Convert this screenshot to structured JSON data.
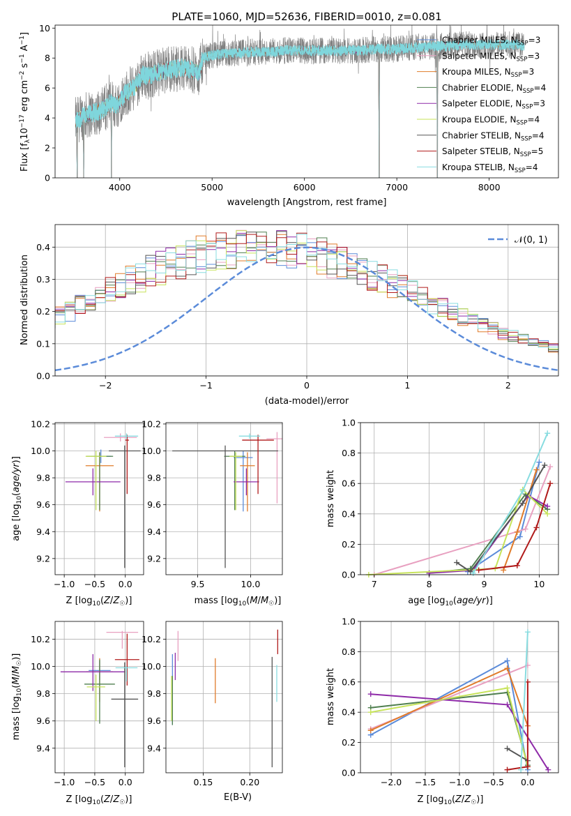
{
  "figure_title": "PLATE=1060, MJD=52636, FIBERID=0010, z=0.081",
  "models": [
    {
      "name": "Chabrier MILES",
      "lab_base": "Chabrier MILES, N",
      "lab_sub": "SSP",
      "lab_end": "=3",
      "color": "#5b8bd9"
    },
    {
      "name": "Salpeter MILES",
      "lab_base": "Salpeter MILES, N",
      "lab_sub": "SSP",
      "lab_end": "=3",
      "color": "#e8a0c0"
    },
    {
      "name": "Kroupa MILES",
      "lab_base": "Kroupa MILES, N",
      "lab_sub": "SSP",
      "lab_end": "=3",
      "color": "#e07b2a"
    },
    {
      "name": "Chabrier ELODIE",
      "lab_base": "Chabrier ELODIE, N",
      "lab_sub": "SSP",
      "lab_end": "=4",
      "color": "#4f7f4f"
    },
    {
      "name": "Salpeter ELODIE",
      "lab_base": "Salpeter ELODIE, N",
      "lab_sub": "SSP",
      "lab_end": "=3",
      "color": "#8e2aa8"
    },
    {
      "name": "Kroupa ELODIE",
      "lab_base": "Kroupa ELODIE, N",
      "lab_sub": "SSP",
      "lab_end": "=4",
      "color": "#c7e35a"
    },
    {
      "name": "Chabrier STELIB",
      "lab_base": "Chabrier STELIB, N",
      "lab_sub": "SSP",
      "lab_end": "=4",
      "color": "#555555"
    },
    {
      "name": "Salpeter STELIB",
      "lab_base": "Salpeter STELIB, N",
      "lab_sub": "SSP",
      "lab_end": "=5",
      "color": "#b01a1a"
    },
    {
      "name": "Kroupa STELIB",
      "lab_base": "Kroupa STELIB, N",
      "lab_sub": "SSP",
      "lab_end": "=4",
      "color": "#88dce0"
    }
  ],
  "chart_data": [
    {
      "type": "line",
      "title": "PLATE=1060, MJD=52636, FIBERID=0010, z=0.081",
      "xlabel": "wavelength [Angstrom, rest frame]",
      "ylabel": "Flux [f_λ 10^-17 erg cm^-2 s^-1 A^-1]",
      "xlim": [
        3300,
        8750
      ],
      "ylim": [
        0,
        10.2
      ],
      "xticks": [
        4000,
        5000,
        6000,
        7000,
        8000
      ],
      "yticks": [
        0,
        2,
        4,
        6,
        8,
        10
      ],
      "data_color": "#808080",
      "model_color": "#7fd6dc",
      "continuum_x": [
        3520,
        3600,
        3700,
        3800,
        3900,
        3960,
        4050,
        4150,
        4250,
        4300,
        4400,
        4500,
        4600,
        4700,
        4860,
        4900,
        5000,
        5200,
        5400,
        5600,
        5800,
        6000,
        6200,
        6400,
        6600,
        6800,
        7000,
        7200,
        7300,
        7400,
        7500,
        7600,
        7700,
        7800,
        7900,
        8000,
        8100,
        8200,
        8300,
        8380
      ],
      "continuum_y": [
        3.8,
        4.1,
        4.3,
        4.5,
        5.0,
        4.8,
        5.6,
        6.0,
        6.9,
        6.8,
        7.0,
        7.2,
        7.3,
        7.4,
        7.0,
        8.0,
        8.2,
        8.3,
        8.4,
        8.4,
        8.5,
        8.5,
        8.5,
        8.5,
        8.5,
        8.6,
        8.6,
        8.7,
        8.7,
        8.8,
        8.8,
        8.8,
        8.9,
        8.9,
        8.9,
        8.9,
        8.9,
        8.9,
        8.9,
        8.8
      ],
      "gaps": [
        [
          3540,
          0
        ],
        [
          3610,
          0
        ],
        [
          3910,
          0
        ],
        [
          6810,
          0
        ],
        [
          7440,
          0
        ]
      ],
      "legend": "upper right"
    },
    {
      "type": "bar",
      "xlabel": "(data-model)/error",
      "ylabel": "Normed distribution",
      "xlim": [
        -2.5,
        2.5
      ],
      "ylim": [
        0,
        0.47
      ],
      "xticks": [
        -2,
        -1,
        0,
        1,
        2
      ],
      "yticks": [
        0.0,
        0.1,
        0.2,
        0.3,
        0.4
      ],
      "bin_width": 0.1,
      "histogram": [
        0.03,
        0.033,
        0.037,
        0.043,
        0.05,
        0.058,
        0.066,
        0.076,
        0.087,
        0.1,
        0.112,
        0.126,
        0.14,
        0.155,
        0.17,
        0.186,
        0.202,
        0.218,
        0.233,
        0.25,
        0.265,
        0.28,
        0.296,
        0.31,
        0.323,
        0.335,
        0.347,
        0.358,
        0.368,
        0.376,
        0.384,
        0.389,
        0.393,
        0.396,
        0.398,
        0.399,
        0.398,
        0.395,
        0.391,
        0.386,
        0.378,
        0.37,
        0.361,
        0.35,
        0.339,
        0.326,
        0.313,
        0.299,
        0.285,
        0.271,
        0.256,
        0.242,
        0.228,
        0.213,
        0.199,
        0.185,
        0.171,
        0.158,
        0.146,
        0.134,
        0.123,
        0.112,
        0.103,
        0.095,
        0.087,
        0.08,
        0.074,
        0.068,
        0.062,
        0.058,
        0.054,
        0.05,
        0.046,
        0.043,
        0.04,
        0.037,
        0.035,
        0.033,
        0.031,
        0.029
      ],
      "reference_curve": {
        "name": "N(0,1)",
        "color": "#5b8bd9"
      },
      "legend": "upper right"
    },
    {
      "type": "scatter",
      "xlabel": "Z [log10(Z/Zsun)]",
      "ylabel": "age [log10(age/yr)]",
      "xlim": [
        -1.15,
        0.3
      ],
      "ylim": [
        9.08,
        10.21
      ],
      "xticks": [
        -1.0,
        -0.5,
        0.0
      ],
      "yticks": [
        9.2,
        9.4,
        9.6,
        9.8,
        10.0,
        10.2
      ],
      "points": [
        {
          "x": -0.4,
          "y": 9.96,
          "xerr": 0.17,
          "yerr": 0.05,
          "yerr_low": 0.05
        },
        {
          "x": -0.08,
          "y": 10.1,
          "xerr": 0.27,
          "yerr": 0.03,
          "yerr_low": 0.03
        },
        {
          "x": -0.42,
          "y": 9.89,
          "xerr": 0.23,
          "yerr": 0.1,
          "yerr_low": 0.34
        },
        {
          "x": -0.42,
          "y": 9.96,
          "xerr": 0.22,
          "yerr": 0.03,
          "yerr_low": 0.4
        },
        {
          "x": -0.53,
          "y": 9.77,
          "xerr": 0.45,
          "yerr": 0.1,
          "yerr_low": 0.1
        },
        {
          "x": -0.48,
          "y": 9.96,
          "xerr": 0.17,
          "yerr": 0.04,
          "yerr_low": 0.4
        },
        {
          "x": -0.01,
          "y": 10.0,
          "xerr": 0.26,
          "yerr": 0.04,
          "yerr_low": 0.87
        },
        {
          "x": 0.03,
          "y": 10.08,
          "xerr": 0.03,
          "yerr": 0.04,
          "yerr_low": 0.4
        },
        {
          "x": 0.02,
          "y": 10.11,
          "xerr": 0.19,
          "yerr": 0.02,
          "yerr_low": 0.02
        }
      ]
    },
    {
      "type": "scatter",
      "xlabel": "mass [log10(M/Msun)]",
      "ylabel": "",
      "xlim": [
        9.2,
        10.3
      ],
      "ylim": [
        9.08,
        10.21
      ],
      "xticks": [
        9.5,
        10.0
      ],
      "yticks": [
        9.2,
        9.4,
        9.6,
        9.8,
        10.0,
        10.2
      ],
      "points": [
        {
          "x": 9.93,
          "y": 9.95,
          "xerr": 0.09,
          "yerr": 0.05,
          "yerr_low": 0.4
        },
        {
          "x": 10.25,
          "y": 10.09,
          "xerr": 0.1,
          "yerr": 0.05,
          "yerr_low": 0.48
        },
        {
          "x": 9.97,
          "y": 9.89,
          "xerr": 0.07,
          "yerr": 0.1,
          "yerr_low": 0.34
        },
        {
          "x": 9.85,
          "y": 9.96,
          "xerr": 0.1,
          "yerr": 0.04,
          "yerr_low": 0.4
        },
        {
          "x": 9.96,
          "y": 9.77,
          "xerr": 0.12,
          "yerr": 0.1,
          "yerr_low": 0.1
        },
        {
          "x": 9.86,
          "y": 9.96,
          "xerr": 0.06,
          "yerr": 0.03,
          "yerr_low": 0.4
        },
        {
          "x": 9.76,
          "y": 10.0,
          "xerr": 0.5,
          "yerr": 0.04,
          "yerr_low": 0.87
        },
        {
          "x": 10.07,
          "y": 10.08,
          "xerr": 0.15,
          "yerr": 0.04,
          "yerr_low": 0.4
        },
        {
          "x": 9.99,
          "y": 10.11,
          "xerr": 0.1,
          "yerr": 0.02,
          "yerr_low": 0.02
        }
      ]
    },
    {
      "type": "line",
      "xlabel": "age [log10(age/yr)]",
      "ylabel": "mass weight",
      "xlim": [
        6.75,
        10.35
      ],
      "ylim": [
        0,
        1.0
      ],
      "xticks": [
        7,
        8,
        9,
        10
      ],
      "yticks": [
        0.0,
        0.2,
        0.4,
        0.6,
        0.8,
        1.0
      ],
      "series": [
        {
          "x": [
            8.7,
            9.65,
            10.0
          ],
          "y": [
            0.02,
            0.25,
            0.74
          ]
        },
        {
          "x": [
            7.0,
            9.75,
            10.2
          ],
          "y": [
            0.0,
            0.3,
            0.71
          ]
        },
        {
          "x": [
            9.35,
            9.6,
            9.95
          ],
          "y": [
            0.03,
            0.28,
            0.69
          ]
        },
        {
          "x": [
            8.0,
            8.75,
            9.75,
            10.15
          ],
          "y": [
            0.01,
            0.04,
            0.53,
            0.43
          ]
        },
        {
          "x": [
            8.0,
            8.8,
            9.8,
            10.15
          ],
          "y": [
            0.01,
            0.03,
            0.52,
            0.45
          ]
        },
        {
          "x": [
            6.9,
            9.2,
            9.7,
            10.15
          ],
          "y": [
            0.0,
            0.04,
            0.56,
            0.4
          ]
        },
        {
          "x": [
            8.5,
            8.75,
            9.7,
            10.1
          ],
          "y": [
            0.08,
            0.02,
            0.47,
            0.72
          ]
        },
        {
          "x": [
            8.9,
            9.6,
            9.95,
            10.2
          ],
          "y": [
            0.03,
            0.06,
            0.31,
            0.6
          ]
        },
        {
          "x": [
            8.8,
            9.7,
            10.15
          ],
          "y": [
            0.01,
            0.55,
            0.93
          ]
        }
      ]
    },
    {
      "type": "scatter",
      "xlabel": "Z [log10(Z/Zsun)]",
      "ylabel": "mass [log10(M/Msun)]",
      "xlim": [
        -1.15,
        0.3
      ],
      "ylim": [
        9.22,
        10.33
      ],
      "xticks": [
        -1.0,
        -0.5,
        0.0
      ],
      "yticks": [
        9.4,
        9.6,
        9.8,
        10.0,
        10.2
      ],
      "points": [
        {
          "x": -0.42,
          "y": 9.97,
          "xerr": 0.18,
          "yerr": 0.07,
          "yerr_low": 0.07
        },
        {
          "x": -0.05,
          "y": 10.25,
          "xerr": 0.26,
          "yerr": 0.01,
          "yerr_low": 0.12
        },
        {
          "x": -0.42,
          "y": 9.96,
          "xerr": 0.22,
          "yerr": 0.1,
          "yerr_low": 0.22
        },
        {
          "x": -0.42,
          "y": 9.87,
          "xerr": 0.25,
          "yerr": 0.18,
          "yerr_low": 0.29
        },
        {
          "x": -0.53,
          "y": 9.96,
          "xerr": 0.53,
          "yerr": 0.13,
          "yerr_low": 0.14
        },
        {
          "x": -0.48,
          "y": 9.85,
          "xerr": 0.15,
          "yerr": 0.09,
          "yerr_low": 0.25
        },
        {
          "x": -0.01,
          "y": 9.76,
          "xerr": 0.22,
          "yerr": 0.27,
          "yerr_low": 0.5
        },
        {
          "x": 0.03,
          "y": 10.05,
          "xerr": 0.2,
          "yerr": 0.19,
          "yerr_low": 0.19
        },
        {
          "x": 0.02,
          "y": 9.99,
          "xerr": 0.18,
          "yerr": 0.01,
          "yerr_low": 0.1
        }
      ]
    },
    {
      "type": "scatter",
      "xlabel": "E(B-V)",
      "ylabel": "",
      "xlim": [
        0.11,
        0.235
      ],
      "ylim": [
        9.22,
        10.33
      ],
      "xticks": [
        0.15,
        0.2
      ],
      "yticks": [
        9.4,
        9.6,
        9.8,
        10.0,
        10.2
      ],
      "points": [
        {
          "x": 0.117,
          "y": 9.95,
          "xerr": 0.0,
          "yerr": 0.14,
          "yerr_low": 0.38
        },
        {
          "x": 0.123,
          "y": 10.15,
          "xerr": 0.0,
          "yerr": 0.11,
          "yerr_low": 0.11
        },
        {
          "x": 0.163,
          "y": 9.89,
          "xerr": 0.0,
          "yerr": 0.17,
          "yerr_low": 0.16
        },
        {
          "x": 0.117,
          "y": 9.8,
          "xerr": 0.0,
          "yerr": 0.13,
          "yerr_low": 0.23
        },
        {
          "x": 0.12,
          "y": 10.0,
          "xerr": 0.0,
          "yerr": 0.1,
          "yerr_low": 0.1
        },
        {
          "x": 0.116,
          "y": 9.75,
          "xerr": 0.0,
          "yerr": 0.18,
          "yerr_low": 0.15
        },
        {
          "x": 0.224,
          "y": 9.66,
          "xerr": 0.0,
          "yerr": 0.41,
          "yerr_low": 0.4
        },
        {
          "x": 0.23,
          "y": 10.18,
          "xerr": 0.0,
          "yerr": 0.09,
          "yerr_low": 0.09
        },
        {
          "x": 0.229,
          "y": 9.91,
          "xerr": 0.0,
          "yerr": 0.1,
          "yerr_low": 0.17
        }
      ]
    },
    {
      "type": "line",
      "xlabel": "Z [log10(Z/Zsun)]",
      "ylabel": "mass weight",
      "xlim": [
        -2.45,
        0.45
      ],
      "ylim": [
        0,
        1.0
      ],
      "xticks": [
        -2.0,
        -1.5,
        -1.0,
        -0.5,
        0.0
      ],
      "yticks": [
        0.0,
        0.2,
        0.4,
        0.6,
        0.8,
        1.0
      ],
      "series": [
        {
          "x": [
            -2.3,
            -0.3,
            0.0
          ],
          "y": [
            0.25,
            0.74,
            0.02
          ]
        },
        {
          "x": [
            -2.3,
            0.0
          ],
          "y": [
            0.29,
            0.71
          ]
        },
        {
          "x": [
            -2.3,
            -0.3,
            0.0
          ],
          "y": [
            0.28,
            0.69,
            0.31
          ]
        },
        {
          "x": [
            -2.3,
            -0.3,
            0.0
          ],
          "y": [
            0.43,
            0.53,
            0.05
          ]
        },
        {
          "x": [
            -2.3,
            -0.3,
            0.3
          ],
          "y": [
            0.52,
            0.45,
            0.02
          ]
        },
        {
          "x": [
            -2.3,
            -0.3,
            0.0
          ],
          "y": [
            0.4,
            0.56,
            0.04
          ]
        },
        {
          "x": [
            -0.3,
            0.0
          ],
          "y": [
            0.16,
            0.08
          ]
        },
        {
          "x": [
            -0.3,
            0.0,
            0.0
          ],
          "y": [
            0.02,
            0.04,
            0.6
          ]
        },
        {
          "x": [
            -0.1,
            0.0
          ],
          "y": [
            0.02,
            0.93
          ]
        }
      ]
    }
  ]
}
